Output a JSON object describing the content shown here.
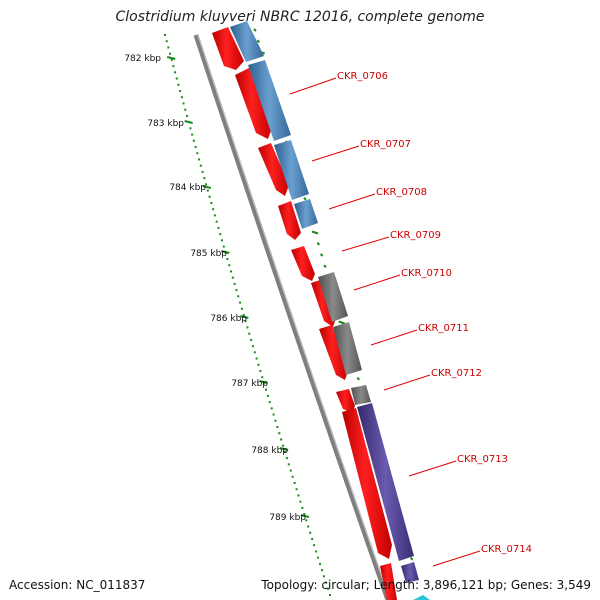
{
  "title": "Clostridium kluyveri NBRC 12016, complete genome",
  "footer": {
    "accession": "Accession: NC_011837",
    "topology": "Topology: circular; Length: 3,896,121 bp; Genes: 3,549"
  },
  "scale_labels": [
    "782 kbp",
    "783 kbp",
    "784 kbp",
    "785 kbp",
    "786 kbp",
    "787 kbp",
    "788 kbp",
    "789 kbp"
  ],
  "genes": [
    "CKR_0706",
    "CKR_0707",
    "CKR_0708",
    "CKR_0709",
    "CKR_0710",
    "CKR_0711",
    "CKR_0712",
    "CKR_0713",
    "CKR_0714"
  ],
  "colors": {
    "gene": "#ff0000",
    "cog_blue": "#4a82b8",
    "cog_gray": "#707070",
    "cog_purple": "#4c3d8a",
    "backbone": "#8a8a8a",
    "ticks": "#1a8a1a",
    "label": "#cc0000"
  }
}
